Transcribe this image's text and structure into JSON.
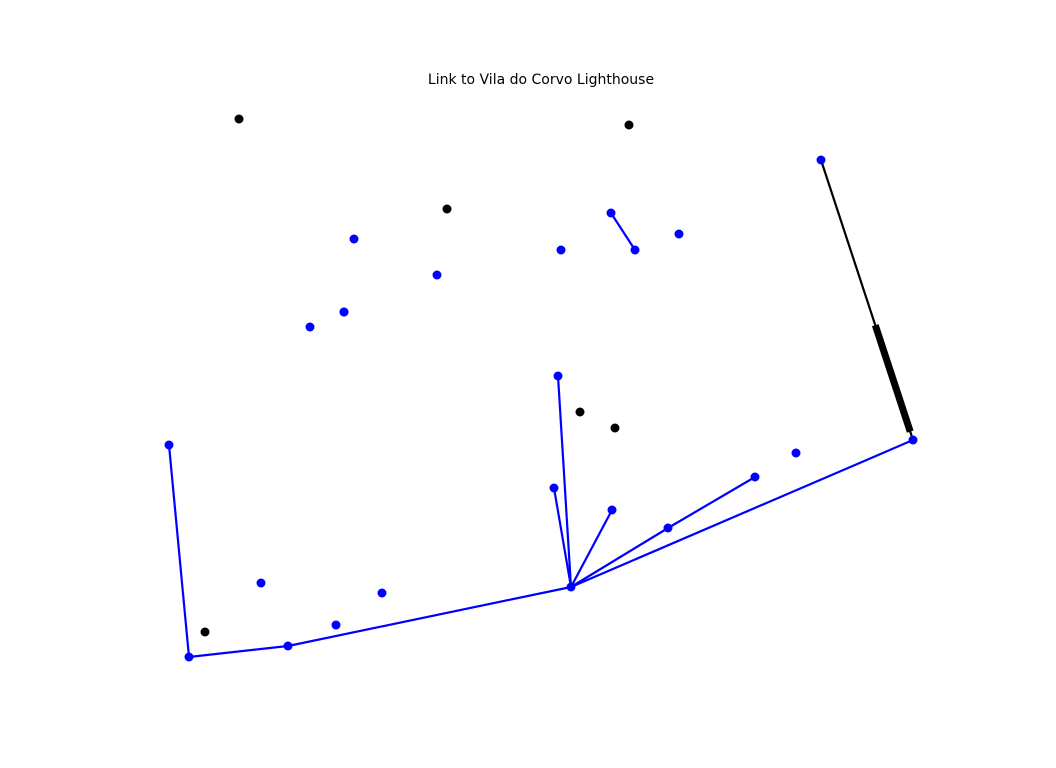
{
  "diagram": {
    "title": "Link to Vila do Corvo Lighthouse",
    "colors": {
      "background": "#ffffff",
      "network": "#0000ff",
      "highlight": "#000000"
    },
    "nodes": [
      {
        "id": "n01",
        "color": "#000000"
      },
      {
        "id": "n02",
        "color": "#000000"
      },
      {
        "id": "n03",
        "color": "#0000ff"
      },
      {
        "id": "n04",
        "color": "#000000"
      },
      {
        "id": "n05",
        "color": "#0000ff"
      },
      {
        "id": "n06",
        "color": "#0000ff"
      },
      {
        "id": "n07",
        "color": "#0000ff"
      },
      {
        "id": "n08",
        "color": "#0000ff"
      },
      {
        "id": "n09",
        "color": "#0000ff"
      },
      {
        "id": "n10",
        "color": "#0000ff"
      },
      {
        "id": "n11",
        "color": "#0000ff"
      },
      {
        "id": "n12",
        "color": "#0000ff"
      },
      {
        "id": "n13",
        "color": "#0000ff"
      },
      {
        "id": "n14",
        "color": "#000000"
      },
      {
        "id": "n15",
        "color": "#000000"
      },
      {
        "id": "n16",
        "color": "#0000ff"
      },
      {
        "id": "n17",
        "color": "#0000ff"
      },
      {
        "id": "n18",
        "color": "#0000ff"
      },
      {
        "id": "n19",
        "color": "#0000ff"
      },
      {
        "id": "n20",
        "color": "#0000ff"
      },
      {
        "id": "n21",
        "color": "#0000ff"
      },
      {
        "id": "n22",
        "color": "#0000ff"
      },
      {
        "id": "n23",
        "color": "#0000ff"
      },
      {
        "id": "n24",
        "color": "#0000ff"
      },
      {
        "id": "n25",
        "color": "#0000ff"
      },
      {
        "id": "n26",
        "color": "#0000ff"
      },
      {
        "id": "n27",
        "color": "#000000"
      },
      {
        "id": "n28",
        "color": "#0000ff"
      },
      {
        "id": "n29",
        "color": "#0000ff"
      }
    ],
    "edges": [
      {
        "from": "n11",
        "to": "n07",
        "style": "network"
      },
      {
        "from": "n12",
        "to": "n18",
        "style": "network"
      },
      {
        "from": "n16",
        "to": "n25",
        "style": "network"
      },
      {
        "from": "n17",
        "to": "n25",
        "style": "network"
      },
      {
        "from": "n19",
        "to": "n25",
        "style": "network"
      },
      {
        "from": "n21",
        "to": "n25",
        "style": "network"
      },
      {
        "from": "n20",
        "to": "n21",
        "style": "network"
      },
      {
        "from": "n13",
        "to": "n25",
        "style": "network"
      },
      {
        "from": "n25",
        "to": "n28",
        "style": "network"
      },
      {
        "from": "n28",
        "to": "n29",
        "style": "network"
      },
      {
        "from": "n29",
        "to": "n22",
        "style": "network"
      },
      {
        "from": "n03",
        "to": "n13",
        "style": "highlight"
      },
      {
        "from": "n03",
        "to": "n13",
        "style": "highlight-bold"
      }
    ]
  }
}
